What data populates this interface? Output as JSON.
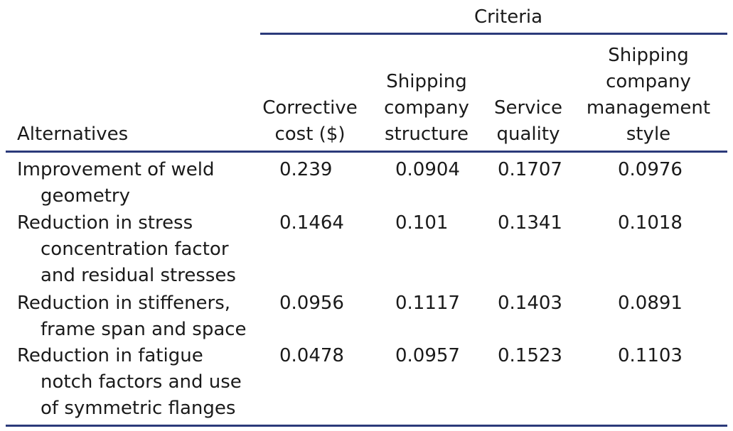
{
  "table": {
    "spanner_label": "Criteria",
    "stub_header": "Alternatives",
    "columns": [
      {
        "lines": [
          "Corrective",
          "cost ($)"
        ]
      },
      {
        "lines": [
          "Shipping",
          "company",
          "structure"
        ]
      },
      {
        "lines": [
          "Service",
          "quality"
        ]
      },
      {
        "lines": [
          "Shipping",
          "company",
          "management",
          "style"
        ]
      }
    ],
    "rows": [
      {
        "label_lines": [
          "Improvement of weld",
          "geometry"
        ],
        "values": [
          "0.239",
          "0.0904",
          "0.1707",
          "0.0976"
        ]
      },
      {
        "label_lines": [
          "Reduction in stress",
          "concentration factor",
          "and residual stresses"
        ],
        "values": [
          "0.1464",
          "0.101",
          "0.1341",
          "0.1018"
        ]
      },
      {
        "label_lines": [
          "Reduction in stiffeners,",
          "frame span and space"
        ],
        "values": [
          "0.0956",
          "0.1117",
          "0.1403",
          "0.0891"
        ]
      },
      {
        "label_lines": [
          "Reduction in fatigue",
          "notch factors and use",
          "of symmetric flanges"
        ],
        "values": [
          "0.0478",
          "0.0957",
          "0.1523",
          "0.1103"
        ]
      }
    ],
    "rule_color": "#2b3a7a"
  }
}
